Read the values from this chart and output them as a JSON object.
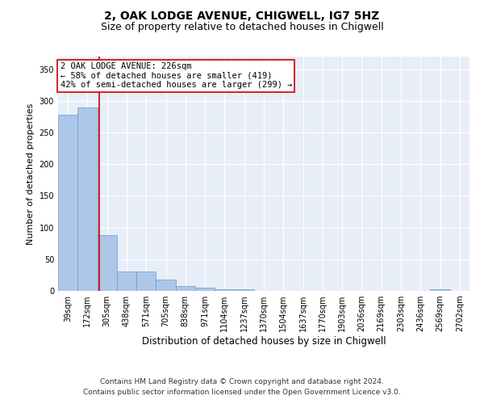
{
  "title1": "2, OAK LODGE AVENUE, CHIGWELL, IG7 5HZ",
  "title2": "Size of property relative to detached houses in Chigwell",
  "xlabel": "Distribution of detached houses by size in Chigwell",
  "ylabel": "Number of detached properties",
  "bin_labels": [
    "39sqm",
    "172sqm",
    "305sqm",
    "438sqm",
    "571sqm",
    "705sqm",
    "838sqm",
    "971sqm",
    "1104sqm",
    "1237sqm",
    "1370sqm",
    "1504sqm",
    "1637sqm",
    "1770sqm",
    "1903sqm",
    "2036sqm",
    "2169sqm",
    "2303sqm",
    "2436sqm",
    "2569sqm",
    "2702sqm"
  ],
  "bar_heights": [
    278,
    290,
    88,
    30,
    30,
    18,
    8,
    5,
    3,
    3,
    0,
    0,
    0,
    0,
    0,
    0,
    0,
    0,
    0,
    2,
    0
  ],
  "bar_color": "#aec6e8",
  "bar_edge_color": "#5a9fd4",
  "vline_x": 1.58,
  "vline_color": "#cc0000",
  "annotation_text": "2 OAK LODGE AVENUE: 226sqm\n← 58% of detached houses are smaller (419)\n42% of semi-detached houses are larger (299) →",
  "annotation_box_color": "#ffffff",
  "annotation_box_edge": "#cc0000",
  "ylim": [
    0,
    370
  ],
  "yticks": [
    0,
    50,
    100,
    150,
    200,
    250,
    300,
    350
  ],
  "background_color": "#e8eef8",
  "footer1": "Contains HM Land Registry data © Crown copyright and database right 2024.",
  "footer2": "Contains public sector information licensed under the Open Government Licence v3.0.",
  "title1_fontsize": 10,
  "title2_fontsize": 9,
  "xlabel_fontsize": 8.5,
  "ylabel_fontsize": 8,
  "tick_fontsize": 7,
  "annotation_fontsize": 7.5,
  "footer_fontsize": 6.5
}
